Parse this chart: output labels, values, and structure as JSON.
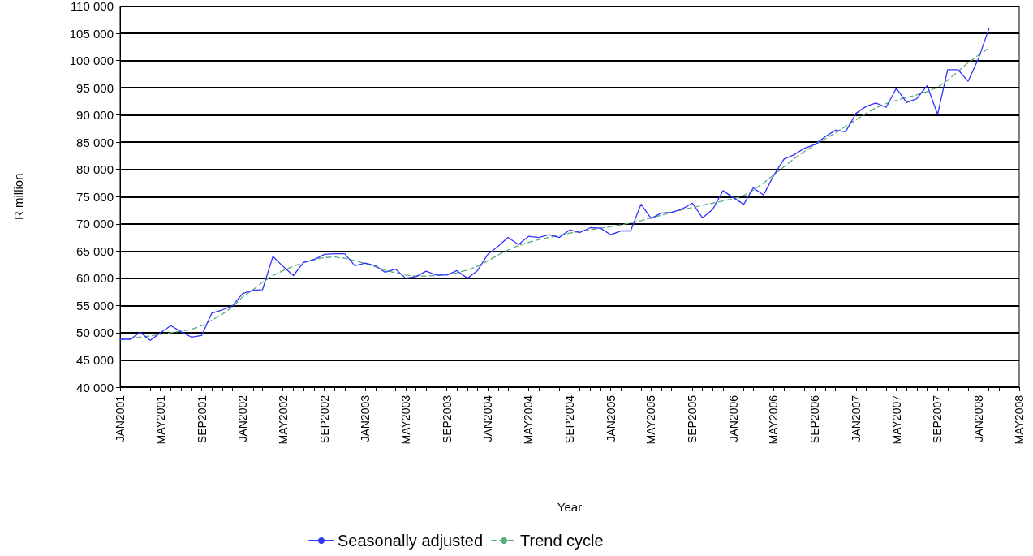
{
  "chart_data": {
    "type": "line",
    "xlabel": "Year",
    "ylabel": "R million",
    "legend": "bottom",
    "grid": "y",
    "marker": "none",
    "x": [
      "2001-01",
      "2001-02",
      "2001-03",
      "2001-04",
      "2001-05",
      "2001-06",
      "2001-07",
      "2001-08",
      "2001-09",
      "2001-10",
      "2001-11",
      "2001-12",
      "2002-01",
      "2002-02",
      "2002-03",
      "2002-04",
      "2002-05",
      "2002-06",
      "2002-07",
      "2002-08",
      "2002-09",
      "2002-10",
      "2002-11",
      "2002-12",
      "2003-01",
      "2003-02",
      "2003-03",
      "2003-04",
      "2003-05",
      "2003-06",
      "2003-07",
      "2003-08",
      "2003-09",
      "2003-10",
      "2003-11",
      "2003-12",
      "2004-01",
      "2004-02",
      "2004-03",
      "2004-04",
      "2004-05",
      "2004-06",
      "2004-07",
      "2004-08",
      "2004-09",
      "2004-10",
      "2004-11",
      "2004-12",
      "2005-01",
      "2005-02",
      "2005-03",
      "2005-04",
      "2005-05",
      "2005-06",
      "2005-07",
      "2005-08",
      "2005-09",
      "2005-10",
      "2005-11",
      "2005-12",
      "2006-01",
      "2006-02",
      "2006-03",
      "2006-04",
      "2006-05",
      "2006-06",
      "2006-07",
      "2006-08",
      "2006-09",
      "2006-10",
      "2006-11",
      "2006-12",
      "2007-01",
      "2007-02",
      "2007-03",
      "2007-04",
      "2007-05",
      "2007-06",
      "2007-07",
      "2007-08",
      "2007-09",
      "2007-10",
      "2007-11",
      "2007-12",
      "2008-01",
      "2008-02"
    ],
    "series": [
      {
        "name": "Seasonally adjusted",
        "color": "#3333ff",
        "line_style": "solid",
        "values": [
          48800,
          48800,
          50100,
          48600,
          50000,
          51300,
          50200,
          49200,
          49500,
          53600,
          54200,
          54900,
          57200,
          57800,
          57900,
          64000,
          62200,
          60500,
          62900,
          63400,
          64400,
          64500,
          64500,
          62300,
          62800,
          62300,
          61100,
          61700,
          60000,
          60300,
          61300,
          60600,
          60600,
          61400,
          60000,
          61400,
          64400,
          65900,
          67500,
          66200,
          67700,
          67500,
          68000,
          67500,
          68900,
          68400,
          69300,
          69200,
          68000,
          68700,
          68700,
          73600,
          71000,
          72000,
          72100,
          72700,
          73800,
          71100,
          72700,
          76100,
          74800,
          73600,
          76600,
          75300,
          78900,
          81900,
          82700,
          83900,
          84600,
          86000,
          87200,
          86900,
          90300,
          91600,
          92200,
          91400,
          94900,
          92300,
          93000,
          95400,
          90100,
          98300,
          98300,
          96200,
          100400,
          105900
        ]
      },
      {
        "name": "Trend cycle",
        "color": "#5aaa7a",
        "line_style": "dashed",
        "values": [
          48700,
          48900,
          49200,
          49400,
          49700,
          50000,
          50300,
          50600,
          51300,
          52300,
          53400,
          54700,
          56600,
          57900,
          59300,
          60500,
          61400,
          62200,
          62900,
          63500,
          63800,
          63900,
          63700,
          63200,
          62700,
          62100,
          61500,
          61000,
          60600,
          60400,
          60400,
          60500,
          60700,
          61000,
          61500,
          62200,
          63200,
          64300,
          65200,
          66000,
          66600,
          67100,
          67500,
          67900,
          68300,
          68600,
          68900,
          69200,
          69500,
          69800,
          70200,
          70600,
          71100,
          71600,
          72100,
          72600,
          73000,
          73400,
          73800,
          74200,
          74600,
          75200,
          76200,
          77500,
          79000,
          80500,
          82000,
          83300,
          84500,
          85600,
          86700,
          87900,
          89100,
          90300,
          91300,
          92100,
          92700,
          93200,
          93700,
          94300,
          95100,
          96400,
          98000,
          99600,
          101000,
          102300
        ]
      }
    ],
    "xlim": [
      "2001-01",
      "2008-05"
    ],
    "xticks": [
      {
        "value": "2001-01",
        "label": "JAN2001"
      },
      {
        "value": "2001-02",
        "label": null
      },
      {
        "value": "2001-03",
        "label": null
      },
      {
        "value": "2001-04",
        "label": null
      },
      {
        "value": "2001-05",
        "label": "MAY2001"
      },
      {
        "value": "2001-06",
        "label": null
      },
      {
        "value": "2001-07",
        "label": null
      },
      {
        "value": "2001-08",
        "label": null
      },
      {
        "value": "2001-09",
        "label": "SEP2001"
      },
      {
        "value": "2001-10",
        "label": null
      },
      {
        "value": "2001-11",
        "label": null
      },
      {
        "value": "2001-12",
        "label": null
      },
      {
        "value": "2002-01",
        "label": "JAN2002"
      },
      {
        "value": "2002-02",
        "label": null
      },
      {
        "value": "2002-03",
        "label": null
      },
      {
        "value": "2002-04",
        "label": null
      },
      {
        "value": "2002-05",
        "label": "MAY2002"
      },
      {
        "value": "2002-06",
        "label": null
      },
      {
        "value": "2002-07",
        "label": null
      },
      {
        "value": "2002-08",
        "label": null
      },
      {
        "value": "2002-09",
        "label": "SEP2002"
      },
      {
        "value": "2002-10",
        "label": null
      },
      {
        "value": "2002-11",
        "label": null
      },
      {
        "value": "2002-12",
        "label": null
      },
      {
        "value": "2003-01",
        "label": "JAN2003"
      },
      {
        "value": "2003-02",
        "label": null
      },
      {
        "value": "2003-03",
        "label": null
      },
      {
        "value": "2003-04",
        "label": null
      },
      {
        "value": "2003-05",
        "label": "MAY2003"
      },
      {
        "value": "2003-06",
        "label": null
      },
      {
        "value": "2003-07",
        "label": null
      },
      {
        "value": "2003-08",
        "label": null
      },
      {
        "value": "2003-09",
        "label": "SEP2003"
      },
      {
        "value": "2003-10",
        "label": null
      },
      {
        "value": "2003-11",
        "label": null
      },
      {
        "value": "2003-12",
        "label": null
      },
      {
        "value": "2004-01",
        "label": "JAN2004"
      },
      {
        "value": "2004-02",
        "label": null
      },
      {
        "value": "2004-03",
        "label": null
      },
      {
        "value": "2004-04",
        "label": null
      },
      {
        "value": "2004-05",
        "label": "MAY2004"
      },
      {
        "value": "2004-06",
        "label": null
      },
      {
        "value": "2004-07",
        "label": null
      },
      {
        "value": "2004-08",
        "label": null
      },
      {
        "value": "2004-09",
        "label": "SEP2004"
      },
      {
        "value": "2004-10",
        "label": null
      },
      {
        "value": "2004-11",
        "label": null
      },
      {
        "value": "2004-12",
        "label": null
      },
      {
        "value": "2005-01",
        "label": "JAN2005"
      },
      {
        "value": "2005-02",
        "label": null
      },
      {
        "value": "2005-03",
        "label": null
      },
      {
        "value": "2005-04",
        "label": null
      },
      {
        "value": "2005-05",
        "label": "MAY2005"
      },
      {
        "value": "2005-06",
        "label": null
      },
      {
        "value": "2005-07",
        "label": null
      },
      {
        "value": "2005-08",
        "label": null
      },
      {
        "value": "2005-09",
        "label": "SEP2005"
      },
      {
        "value": "2005-10",
        "label": null
      },
      {
        "value": "2005-11",
        "label": null
      },
      {
        "value": "2005-12",
        "label": null
      },
      {
        "value": "2006-01",
        "label": "JAN2006"
      },
      {
        "value": "2006-02",
        "label": null
      },
      {
        "value": "2006-03",
        "label": null
      },
      {
        "value": "2006-04",
        "label": null
      },
      {
        "value": "2006-05",
        "label": "MAY2006"
      },
      {
        "value": "2006-06",
        "label": null
      },
      {
        "value": "2006-07",
        "label": null
      },
      {
        "value": "2006-08",
        "label": null
      },
      {
        "value": "2006-09",
        "label": "SEP2006"
      },
      {
        "value": "2006-10",
        "label": null
      },
      {
        "value": "2006-11",
        "label": null
      },
      {
        "value": "2006-12",
        "label": null
      },
      {
        "value": "2007-01",
        "label": "JAN2007"
      },
      {
        "value": "2007-02",
        "label": null
      },
      {
        "value": "2007-03",
        "label": null
      },
      {
        "value": "2007-04",
        "label": null
      },
      {
        "value": "2007-05",
        "label": "MAY2007"
      },
      {
        "value": "2007-06",
        "label": null
      },
      {
        "value": "2007-07",
        "label": null
      },
      {
        "value": "2007-08",
        "label": null
      },
      {
        "value": "2007-09",
        "label": "SEP2007"
      },
      {
        "value": "2007-10",
        "label": null
      },
      {
        "value": "2007-11",
        "label": null
      },
      {
        "value": "2007-12",
        "label": null
      },
      {
        "value": "2008-01",
        "label": "JAN2008"
      },
      {
        "value": "2008-02",
        "label": null
      },
      {
        "value": "2008-03",
        "label": null
      },
      {
        "value": "2008-04",
        "label": null
      },
      {
        "value": "2008-05",
        "label": "MAY2008"
      }
    ],
    "ylim": [
      40000,
      110000
    ],
    "yticks": [
      {
        "value": 40000,
        "label": "40 000"
      },
      {
        "value": 45000,
        "label": "45 000"
      },
      {
        "value": 50000,
        "label": "50 000"
      },
      {
        "value": 55000,
        "label": "55 000"
      },
      {
        "value": 60000,
        "label": "60 000"
      },
      {
        "value": 65000,
        "label": "65 000"
      },
      {
        "value": 70000,
        "label": "70 000"
      },
      {
        "value": 75000,
        "label": "75 000"
      },
      {
        "value": 80000,
        "label": "80 000"
      },
      {
        "value": 85000,
        "label": "85 000"
      },
      {
        "value": 90000,
        "label": "90 000"
      },
      {
        "value": 95000,
        "label": "95 000"
      },
      {
        "value": 100000,
        "label": "100 000"
      },
      {
        "value": 105000,
        "label": "105 000"
      },
      {
        "value": 110000,
        "label": "110 000"
      }
    ]
  }
}
